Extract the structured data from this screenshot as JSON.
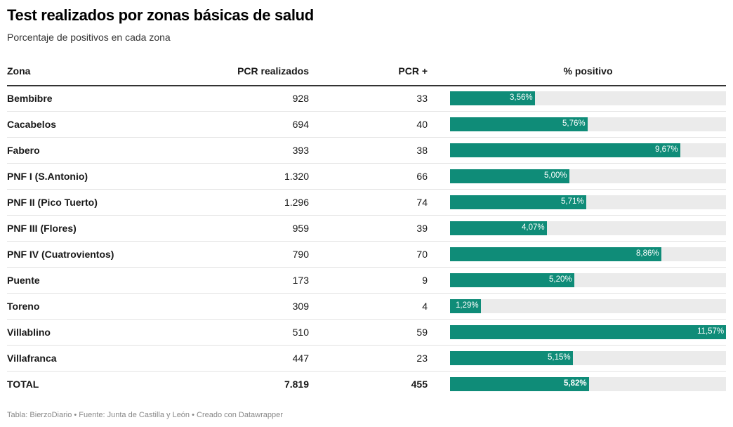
{
  "title": "Test realizados por zonas básicas de salud",
  "subtitle": "Porcentaje de positivos en cada zona",
  "footer": "Tabla: BierzoDiario • Fuente: Junta de Castilla y León • Creado con Datawrapper",
  "colors": {
    "bar": "#0f8c78",
    "track": "#ebebeb"
  },
  "chart_data": {
    "type": "table",
    "columns": [
      "Zona",
      "PCR realizados",
      "PCR +",
      "% positivo"
    ],
    "bar_max": 11.57,
    "rows": [
      {
        "zona": "Bembibre",
        "pcr": "928",
        "pos": "33",
        "pct": 3.56,
        "pct_label": "3,56%"
      },
      {
        "zona": "Cacabelos",
        "pcr": "694",
        "pos": "40",
        "pct": 5.76,
        "pct_label": "5,76%"
      },
      {
        "zona": "Fabero",
        "pcr": "393",
        "pos": "38",
        "pct": 9.67,
        "pct_label": "9,67%"
      },
      {
        "zona": "PNF I (S.Antonio)",
        "pcr": "1.320",
        "pos": "66",
        "pct": 5.0,
        "pct_label": "5,00%"
      },
      {
        "zona": "PNF II (Pico Tuerto)",
        "pcr": "1.296",
        "pos": "74",
        "pct": 5.71,
        "pct_label": "5,71%"
      },
      {
        "zona": "PNF III (Flores)",
        "pcr": "959",
        "pos": "39",
        "pct": 4.07,
        "pct_label": "4,07%"
      },
      {
        "zona": "PNF IV (Cuatrovientos)",
        "pcr": "790",
        "pos": "70",
        "pct": 8.86,
        "pct_label": "8,86%"
      },
      {
        "zona": "Puente",
        "pcr": "173",
        "pos": "9",
        "pct": 5.2,
        "pct_label": "5,20%"
      },
      {
        "zona": "Toreno",
        "pcr": "309",
        "pos": "4",
        "pct": 1.29,
        "pct_label": "1,29%"
      },
      {
        "zona": "Villablino",
        "pcr": "510",
        "pos": "59",
        "pct": 11.57,
        "pct_label": "11,57%"
      },
      {
        "zona": "Villafranca",
        "pcr": "447",
        "pos": "23",
        "pct": 5.15,
        "pct_label": "5,15%"
      },
      {
        "zona": "TOTAL",
        "pcr": "7.819",
        "pos": "455",
        "pct": 5.82,
        "pct_label": "5,82%",
        "total": true
      }
    ]
  }
}
